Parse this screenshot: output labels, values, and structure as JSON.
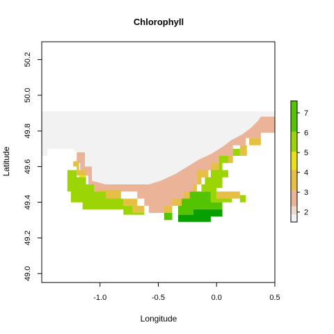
{
  "chart_data": {
    "type": "heatmap",
    "title": "Chlorophyll",
    "xlabel": "Longitude",
    "ylabel": "Latitude",
    "xlim": [
      -1.5,
      0.5
    ],
    "ylim": [
      48.95,
      50.3
    ],
    "x_ticks": [
      -1.0,
      -0.5,
      0.0,
      0.5
    ],
    "x_tick_labels": [
      "-1.0",
      "-0.5",
      "0.0",
      "0.5"
    ],
    "y_ticks": [
      49.0,
      49.2,
      49.4,
      49.6,
      49.8,
      50.0,
      50.2
    ],
    "y_tick_labels": [
      "49.0",
      "49.2",
      "49.4",
      "49.6",
      "49.8",
      "50.0",
      "50.2"
    ],
    "grid": false,
    "legend": {
      "position": "right",
      "min": 1.5,
      "max": 7.6,
      "ticks": [
        2,
        3,
        4,
        5,
        6,
        7
      ],
      "tick_labels": [
        "2",
        "3",
        "4",
        "5",
        "6",
        "7"
      ]
    },
    "cell_size_deg": [
      0.125,
      0.0833
    ],
    "colors": {
      "c1": "#f2f2f2",
      "c2": "#ebb398",
      "c3": "#e6c044",
      "c4": "#e9e016",
      "c5": "#9bd506",
      "c6": "#55c400",
      "c7": "#07a000",
      "frame": "#000000"
    },
    "value_scale": {
      "c1": 1.6,
      "c2": 2.3,
      "c3": 3.1,
      "c4": 4.1,
      "c5": 5.1,
      "c6": 6.1,
      "c7": 7.1
    },
    "regions": [
      {
        "v": "c1",
        "pts": [
          [
            -1.5,
            49.91
          ],
          [
            0.5,
            49.91
          ],
          [
            0.5,
            49.86
          ],
          [
            0.38,
            49.86
          ],
          [
            0.35,
            49.82
          ],
          [
            0.28,
            49.81
          ],
          [
            0.22,
            49.77
          ],
          [
            0.14,
            49.74
          ],
          [
            0.07,
            49.7
          ],
          [
            -0.07,
            49.66
          ],
          [
            -0.17,
            49.63
          ],
          [
            -0.25,
            49.59
          ],
          [
            -0.35,
            49.56
          ],
          [
            -0.42,
            49.53
          ],
          [
            -0.5,
            49.5
          ],
          [
            -0.62,
            49.48
          ],
          [
            -0.75,
            49.48
          ],
          [
            -0.92,
            49.48
          ],
          [
            -1.02,
            49.49
          ],
          [
            -1.1,
            49.53
          ],
          [
            -1.15,
            49.6
          ],
          [
            -1.18,
            49.66
          ],
          [
            -1.23,
            49.7
          ],
          [
            -1.45,
            49.7
          ],
          [
            -1.45,
            49.66
          ],
          [
            -1.5,
            49.66
          ]
        ]
      },
      {
        "v": "c2",
        "pts": [
          [
            0.38,
            49.88
          ],
          [
            0.5,
            49.88
          ],
          [
            0.5,
            49.79
          ],
          [
            0.38,
            49.79
          ],
          [
            0.38,
            49.76
          ],
          [
            0.25,
            49.76
          ],
          [
            0.25,
            49.72
          ],
          [
            0.14,
            49.72
          ],
          [
            0.14,
            49.66
          ],
          [
            0.07,
            49.66
          ],
          [
            0.07,
            49.62
          ],
          [
            0.0,
            49.62
          ],
          [
            0.0,
            49.58
          ],
          [
            -0.07,
            49.58
          ],
          [
            -0.07,
            49.54
          ],
          [
            -0.17,
            49.54
          ],
          [
            -0.17,
            49.46
          ],
          [
            -0.23,
            49.46
          ],
          [
            -0.23,
            49.42
          ],
          [
            -0.3,
            49.42
          ],
          [
            -0.3,
            49.38
          ],
          [
            -0.4,
            49.38
          ],
          [
            -0.4,
            49.34
          ],
          [
            -0.58,
            49.34
          ],
          [
            -0.58,
            49.38
          ],
          [
            -0.62,
            49.38
          ],
          [
            -0.62,
            49.42
          ],
          [
            -0.68,
            49.42
          ],
          [
            -0.68,
            49.46
          ],
          [
            -1.05,
            49.46
          ],
          [
            -1.05,
            49.5
          ],
          [
            -1.1,
            49.5
          ],
          [
            -1.1,
            49.55
          ],
          [
            -1.17,
            49.55
          ],
          [
            -1.17,
            49.62
          ],
          [
            -1.2,
            49.62
          ],
          [
            -1.2,
            49.68
          ],
          [
            -1.13,
            49.68
          ],
          [
            -1.13,
            49.6
          ],
          [
            -1.07,
            49.6
          ],
          [
            -1.07,
            49.52
          ],
          [
            -0.95,
            49.5
          ],
          [
            -0.75,
            49.5
          ],
          [
            -0.58,
            49.5
          ],
          [
            -0.48,
            49.52
          ],
          [
            -0.35,
            49.56
          ],
          [
            -0.25,
            49.6
          ],
          [
            -0.15,
            49.64
          ],
          [
            -0.05,
            49.67
          ],
          [
            0.05,
            49.71
          ],
          [
            0.13,
            49.75
          ],
          [
            0.22,
            49.78
          ],
          [
            0.3,
            49.82
          ],
          [
            0.36,
            49.86
          ]
        ]
      },
      {
        "v": "c3",
        "pts": [
          [
            -1.23,
            49.63
          ],
          [
            -1.18,
            49.63
          ],
          [
            -1.18,
            49.58
          ],
          [
            -1.12,
            49.58
          ],
          [
            -1.12,
            49.55
          ],
          [
            -1.2,
            49.55
          ],
          [
            -1.2,
            49.6
          ],
          [
            -1.23,
            49.6
          ]
        ]
      },
      {
        "v": "c3",
        "pts": [
          [
            -1.02,
            49.47
          ],
          [
            -0.82,
            49.47
          ],
          [
            -0.82,
            49.42
          ],
          [
            -0.68,
            49.42
          ],
          [
            -0.68,
            49.38
          ],
          [
            -0.62,
            49.38
          ],
          [
            -0.62,
            49.34
          ],
          [
            -0.72,
            49.34
          ],
          [
            -0.72,
            49.38
          ],
          [
            -0.8,
            49.38
          ],
          [
            -0.8,
            49.42
          ],
          [
            -0.95,
            49.42
          ],
          [
            -1.02,
            49.44
          ]
        ]
      },
      {
        "v": "c3",
        "pts": [
          [
            0.28,
            49.76
          ],
          [
            0.38,
            49.76
          ],
          [
            0.38,
            49.72
          ],
          [
            0.28,
            49.72
          ]
        ]
      },
      {
        "v": "c3",
        "pts": [
          [
            0.2,
            49.72
          ],
          [
            0.26,
            49.72
          ],
          [
            0.26,
            49.66
          ],
          [
            0.2,
            49.66
          ]
        ]
      },
      {
        "v": "c3",
        "pts": [
          [
            0.07,
            49.66
          ],
          [
            0.14,
            49.66
          ],
          [
            0.14,
            49.62
          ],
          [
            0.07,
            49.62
          ]
        ]
      },
      {
        "v": "c3",
        "pts": [
          [
            -0.05,
            49.62
          ],
          [
            0.02,
            49.62
          ],
          [
            0.02,
            49.58
          ],
          [
            -0.05,
            49.58
          ]
        ]
      },
      {
        "v": "c3",
        "pts": [
          [
            -0.17,
            49.58
          ],
          [
            -0.07,
            49.58
          ],
          [
            -0.07,
            49.54
          ],
          [
            -0.13,
            49.54
          ],
          [
            -0.13,
            49.5
          ],
          [
            -0.2,
            49.5
          ],
          [
            -0.2,
            49.46
          ],
          [
            -0.28,
            49.46
          ],
          [
            -0.28,
            49.42
          ],
          [
            -0.38,
            49.42
          ],
          [
            -0.38,
            49.38
          ],
          [
            -0.45,
            49.38
          ],
          [
            -0.45,
            49.34
          ],
          [
            -0.38,
            49.34
          ],
          [
            -0.38,
            49.38
          ],
          [
            -0.3,
            49.38
          ],
          [
            -0.3,
            49.42
          ],
          [
            -0.23,
            49.42
          ],
          [
            -0.23,
            49.46
          ],
          [
            -0.17,
            49.46
          ]
        ]
      },
      {
        "v": "c3",
        "pts": [
          [
            0.0,
            49.46
          ],
          [
            0.2,
            49.46
          ],
          [
            0.2,
            49.42
          ],
          [
            0.0,
            49.42
          ]
        ]
      },
      {
        "v": "c4",
        "pts": [
          [
            -1.18,
            49.55
          ],
          [
            -1.12,
            49.55
          ],
          [
            -1.12,
            49.5
          ],
          [
            -1.18,
            49.5
          ]
        ]
      },
      {
        "v": "c4",
        "pts": [
          [
            -1.02,
            49.46
          ],
          [
            -0.95,
            49.46
          ],
          [
            -0.95,
            49.43
          ],
          [
            -1.02,
            49.43
          ]
        ]
      },
      {
        "v": "c5",
        "pts": [
          [
            -1.28,
            49.58
          ],
          [
            -1.2,
            49.58
          ],
          [
            -1.2,
            49.54
          ],
          [
            -1.12,
            49.54
          ],
          [
            -1.12,
            49.5
          ],
          [
            -1.05,
            49.5
          ],
          [
            -1.05,
            49.46
          ],
          [
            -0.95,
            49.46
          ],
          [
            -0.95,
            49.42
          ],
          [
            -0.8,
            49.42
          ],
          [
            -0.8,
            49.38
          ],
          [
            -0.72,
            49.38
          ],
          [
            -0.72,
            49.34
          ],
          [
            -0.62,
            49.34
          ],
          [
            -0.62,
            49.33
          ],
          [
            -0.8,
            49.33
          ],
          [
            -0.8,
            49.36
          ],
          [
            -1.15,
            49.36
          ],
          [
            -1.15,
            49.4
          ],
          [
            -1.25,
            49.4
          ],
          [
            -1.25,
            49.46
          ],
          [
            -1.28,
            49.46
          ]
        ]
      },
      {
        "v": "c5",
        "pts": [
          [
            0.14,
            49.7
          ],
          [
            0.2,
            49.7
          ],
          [
            0.2,
            49.66
          ],
          [
            0.14,
            49.66
          ]
        ]
      },
      {
        "v": "c5",
        "pts": [
          [
            0.02,
            49.66
          ],
          [
            0.1,
            49.66
          ],
          [
            0.1,
            49.62
          ],
          [
            0.05,
            49.62
          ],
          [
            0.05,
            49.58
          ],
          [
            0.1,
            49.58
          ],
          [
            0.1,
            49.54
          ],
          [
            0.05,
            49.54
          ],
          [
            0.05,
            49.48
          ],
          [
            0.0,
            49.48
          ],
          [
            0.0,
            49.42
          ],
          [
            0.13,
            49.42
          ],
          [
            0.13,
            49.4
          ],
          [
            -0.05,
            49.4
          ],
          [
            -0.05,
            49.46
          ],
          [
            -0.13,
            49.46
          ],
          [
            -0.13,
            49.5
          ],
          [
            -0.1,
            49.5
          ],
          [
            -0.1,
            49.54
          ],
          [
            -0.05,
            49.54
          ],
          [
            -0.05,
            49.58
          ],
          [
            0.02,
            49.58
          ]
        ]
      },
      {
        "v": "c5",
        "pts": [
          [
            0.2,
            49.44
          ],
          [
            0.25,
            49.44
          ],
          [
            0.25,
            49.4
          ],
          [
            0.2,
            49.4
          ]
        ]
      },
      {
        "v": "c6",
        "pts": [
          [
            -0.17,
            49.46
          ],
          [
            -0.05,
            49.46
          ],
          [
            -0.05,
            49.4
          ],
          [
            0.05,
            49.4
          ],
          [
            0.05,
            49.36
          ],
          [
            -0.2,
            49.36
          ],
          [
            -0.2,
            49.33
          ],
          [
            -0.33,
            49.33
          ],
          [
            -0.33,
            49.38
          ],
          [
            -0.3,
            49.38
          ],
          [
            -0.3,
            49.42
          ],
          [
            -0.23,
            49.42
          ],
          [
            -0.23,
            49.46
          ]
        ]
      },
      {
        "v": "c6",
        "pts": [
          [
            -0.45,
            49.34
          ],
          [
            -0.38,
            49.34
          ],
          [
            -0.38,
            49.3
          ],
          [
            -0.45,
            49.3
          ]
        ]
      },
      {
        "v": "c7",
        "pts": [
          [
            -0.2,
            49.36
          ],
          [
            0.05,
            49.36
          ],
          [
            0.05,
            49.32
          ],
          [
            -0.05,
            49.32
          ],
          [
            -0.05,
            49.29
          ],
          [
            -0.33,
            49.29
          ],
          [
            -0.33,
            49.33
          ],
          [
            -0.2,
            49.33
          ]
        ]
      }
    ]
  }
}
